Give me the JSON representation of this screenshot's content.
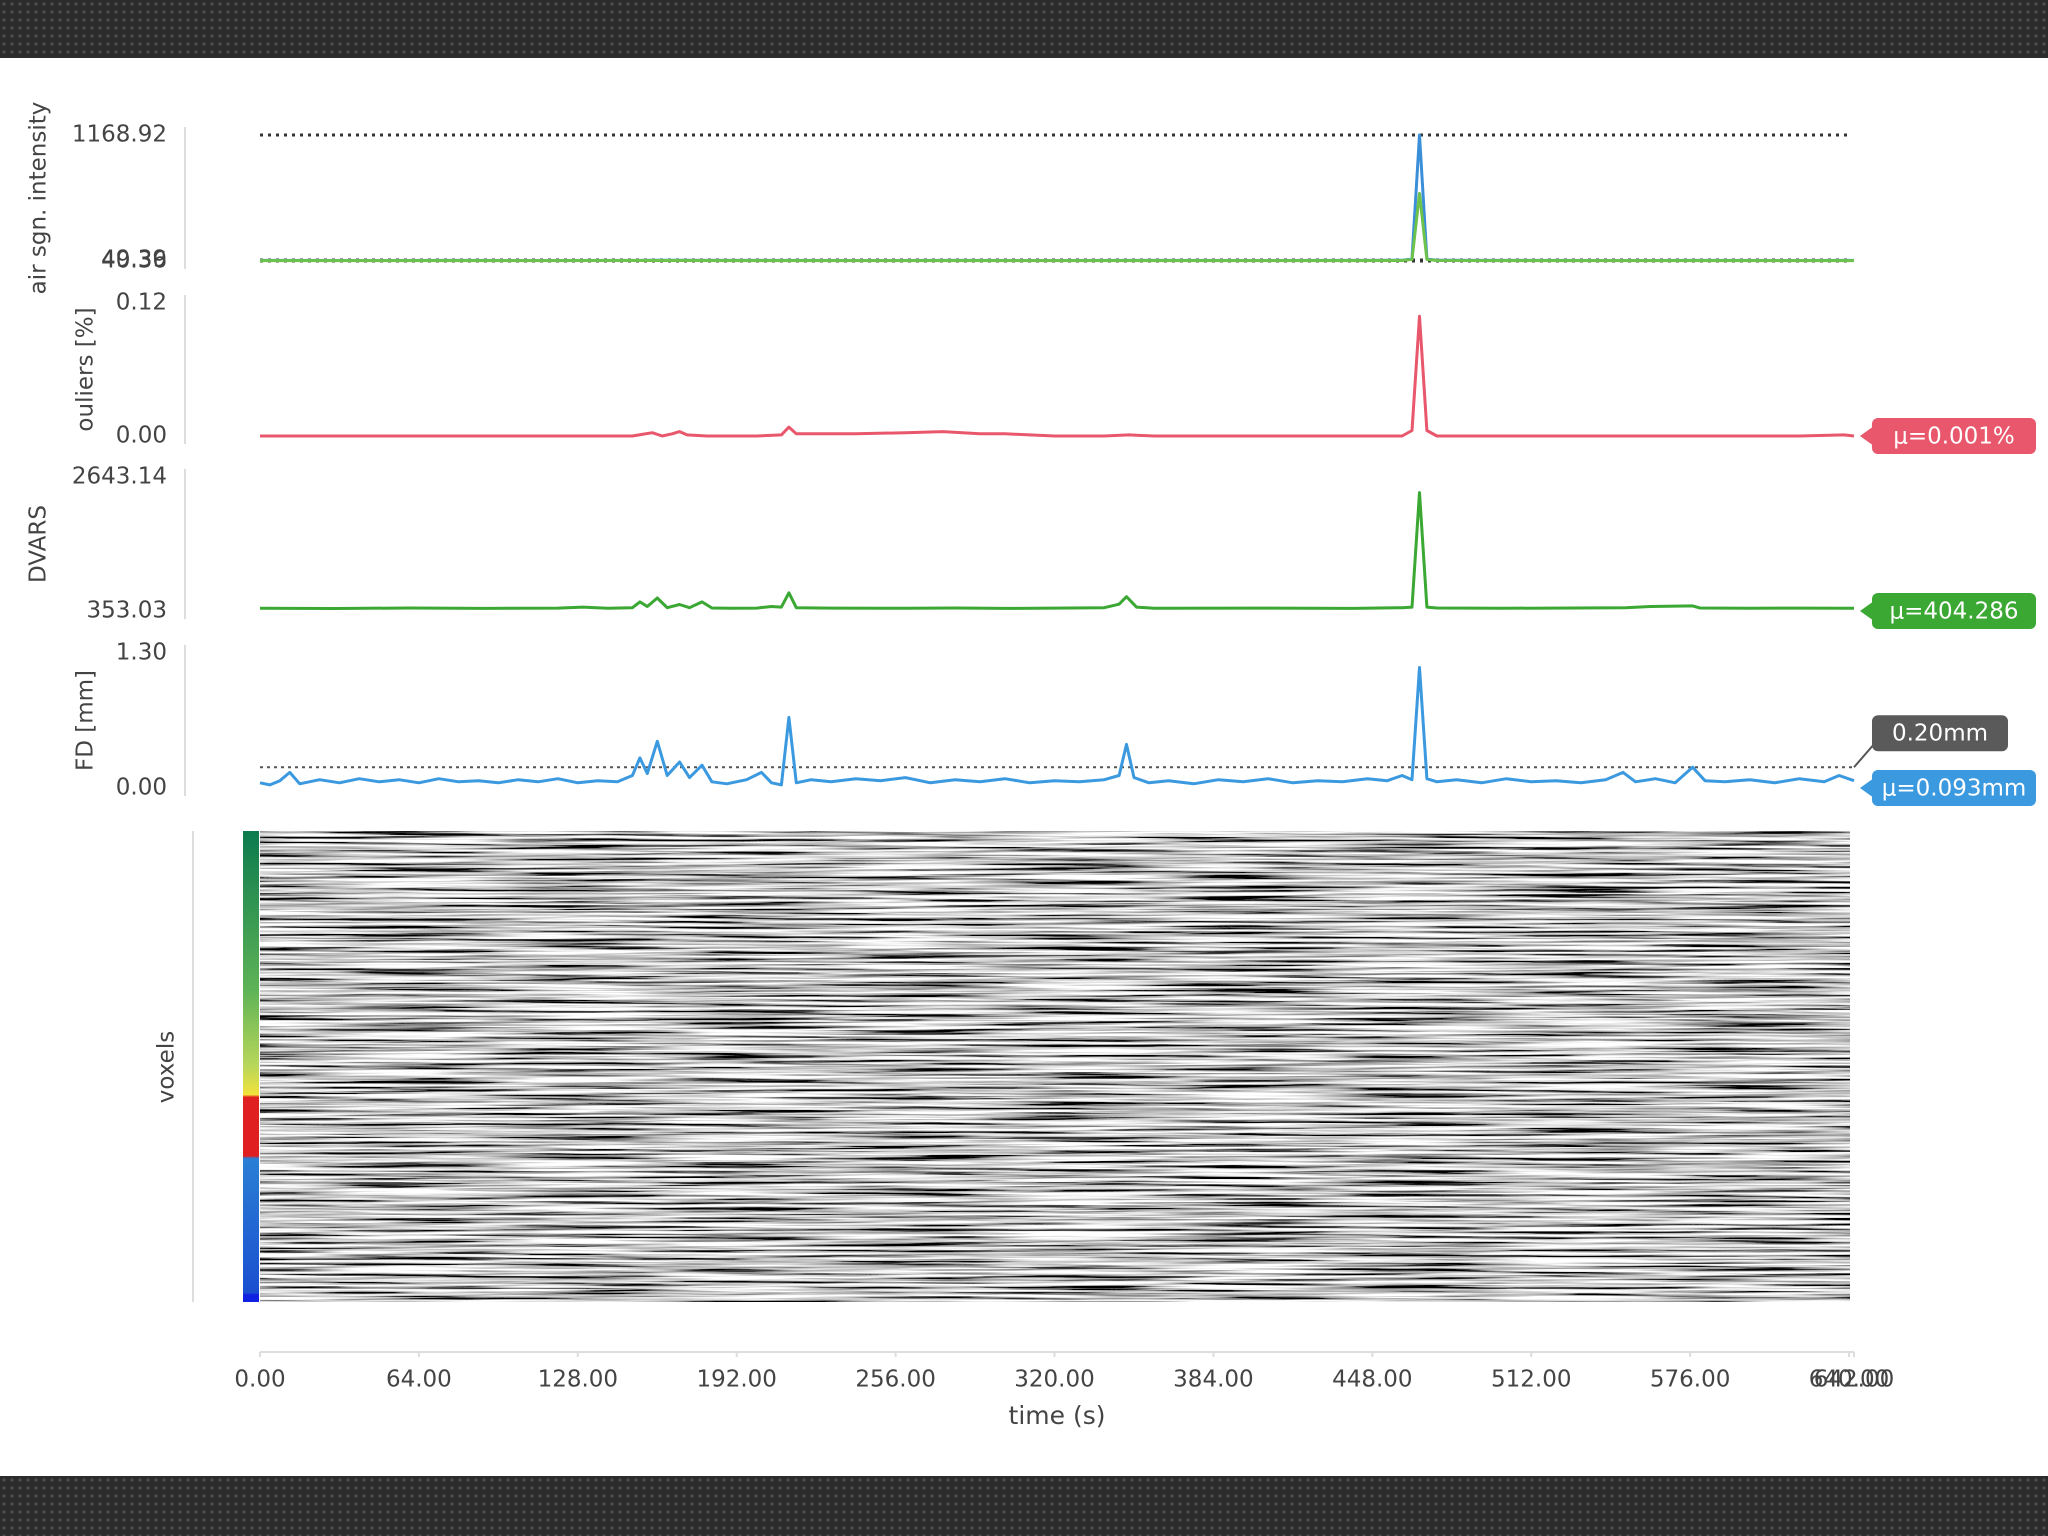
{
  "chart_data": [
    {
      "type": "line",
      "ylabel": "air sgn. intensity",
      "grid": "dotted",
      "ylim": [
        40.36,
        1168.92
      ],
      "yticks": [
        {
          "value": 40.36,
          "label": "40.36"
        },
        {
          "value": 49.39,
          "label": "49.39"
        },
        {
          "value": 1168.92,
          "label": "1168.92"
        }
      ],
      "x": [
        0,
        40,
        80,
        120,
        160,
        200,
        240,
        280,
        320,
        360,
        400,
        440,
        460,
        464,
        467,
        470,
        474,
        500,
        540,
        580,
        620,
        642
      ],
      "series": [
        {
          "color": "#3b8fd9",
          "values": [
            46,
            45,
            46,
            45,
            47,
            46,
            45,
            46,
            45,
            46,
            45,
            46,
            47,
            60,
            1168.92,
            60,
            47,
            46,
            45,
            46,
            45,
            46
          ]
        },
        {
          "color": "#6cc24a",
          "values": [
            44,
            44,
            44,
            44,
            45,
            44,
            44,
            44,
            44,
            44,
            44,
            44,
            45,
            55,
            645,
            55,
            45,
            44,
            44,
            44,
            44,
            44
          ]
        }
      ]
    },
    {
      "type": "line",
      "ylabel": "ouliers [%]",
      "mean_label": "μ=0.001%",
      "ylim": [
        0,
        0.12
      ],
      "yticks": [
        {
          "value": 0,
          "label": "0.00"
        },
        {
          "value": 0.12,
          "label": "0.12"
        }
      ],
      "x": [
        0,
        40,
        80,
        120,
        150,
        158,
        162,
        166,
        169,
        172,
        180,
        200,
        210,
        213,
        216,
        230,
        240,
        260,
        275,
        290,
        300,
        320,
        340,
        350,
        360,
        400,
        440,
        460,
        464,
        467,
        470,
        474,
        500,
        560,
        620,
        638,
        642
      ],
      "series": [
        {
          "color": "#e8576b",
          "values": [
            0,
            0,
            0,
            0,
            0,
            0.003,
            0,
            0.002,
            0.004,
            0.001,
            0,
            0,
            0.001,
            0.008,
            0.002,
            0.002,
            0.002,
            0.003,
            0.004,
            0.002,
            0.002,
            0,
            0,
            0.001,
            0,
            0,
            0,
            0,
            0.005,
            0.108,
            0.005,
            0,
            0,
            0,
            0,
            0.001,
            0
          ]
        }
      ]
    },
    {
      "type": "line",
      "ylabel": "DVARS",
      "mean_label": "μ=404.286",
      "ylim": [
        353.03,
        2643.14
      ],
      "yticks": [
        {
          "value": 353.03,
          "label": "353.03"
        },
        {
          "value": 2643.14,
          "label": "2643.14"
        }
      ],
      "x": [
        0,
        30,
        60,
        90,
        120,
        130,
        140,
        150,
        153,
        156,
        160,
        164,
        169,
        173,
        178,
        182,
        190,
        200,
        206,
        210,
        213,
        216,
        230,
        260,
        280,
        300,
        320,
        340,
        346,
        349,
        353,
        360,
        400,
        440,
        460,
        464,
        467,
        470,
        474,
        500,
        550,
        560,
        577,
        580,
        600,
        620,
        642
      ],
      "series": [
        {
          "color": "#3aa832",
          "values": [
            400,
            395,
            405,
            398,
            402,
            420,
            400,
            410,
            509,
            430,
            575,
            410,
            464,
            410,
            509,
            405,
            400,
            402,
            430,
            420,
            664,
            410,
            402,
            400,
            405,
            398,
            402,
            410,
            470,
            597,
            420,
            400,
            402,
            398,
            410,
            420,
            2376,
            420,
            405,
            400,
            410,
            430,
            440,
            405,
            400,
            402,
            400
          ]
        }
      ]
    },
    {
      "type": "line",
      "ylabel": "FD [mm]",
      "mean_label": "μ=0.093mm",
      "threshold": 0.2,
      "threshold_label": "0.20mm",
      "ylim": [
        0,
        1.3
      ],
      "yticks": [
        {
          "value": 0,
          "label": "0.00"
        },
        {
          "value": 1.3,
          "label": "1.30"
        }
      ],
      "x": [
        0,
        4,
        8,
        12,
        16,
        24,
        32,
        40,
        48,
        56,
        64,
        72,
        80,
        88,
        96,
        104,
        112,
        120,
        128,
        136,
        144,
        150,
        153,
        156,
        160,
        164,
        169,
        173,
        178,
        182,
        188,
        196,
        202,
        206,
        210,
        213,
        216,
        222,
        230,
        240,
        250,
        260,
        270,
        280,
        290,
        300,
        310,
        320,
        330,
        340,
        346,
        349,
        352,
        358,
        366,
        376,
        386,
        396,
        406,
        416,
        426,
        436,
        446,
        454,
        460,
        464,
        467,
        470,
        474,
        482,
        492,
        502,
        512,
        522,
        532,
        542,
        549,
        554,
        562,
        570,
        577,
        582,
        590,
        600,
        610,
        620,
        630,
        636,
        642
      ],
      "series": [
        {
          "color": "#3b99e0",
          "values": [
            0.05,
            0.03,
            0.07,
            0.15,
            0.04,
            0.08,
            0.05,
            0.09,
            0.06,
            0.08,
            0.05,
            0.09,
            0.06,
            0.07,
            0.05,
            0.08,
            0.06,
            0.09,
            0.05,
            0.07,
            0.06,
            0.12,
            0.29,
            0.14,
            0.45,
            0.12,
            0.25,
            0.1,
            0.22,
            0.06,
            0.04,
            0.08,
            0.15,
            0.05,
            0.03,
            0.68,
            0.05,
            0.08,
            0.06,
            0.09,
            0.07,
            0.1,
            0.05,
            0.08,
            0.06,
            0.09,
            0.05,
            0.07,
            0.06,
            0.08,
            0.12,
            0.42,
            0.1,
            0.05,
            0.07,
            0.04,
            0.08,
            0.06,
            0.09,
            0.05,
            0.07,
            0.06,
            0.09,
            0.07,
            0.12,
            0.08,
            1.16,
            0.09,
            0.06,
            0.08,
            0.05,
            0.09,
            0.06,
            0.07,
            0.05,
            0.08,
            0.15,
            0.06,
            0.09,
            0.05,
            0.2,
            0.07,
            0.06,
            0.08,
            0.05,
            0.09,
            0.06,
            0.12,
            0.07
          ]
        }
      ]
    },
    {
      "type": "carpet",
      "ylabel": "voxels",
      "xlabel": "time (s)",
      "xlim": [
        0,
        642
      ],
      "xticks": [
        {
          "value": 0,
          "label": "0.00"
        },
        {
          "value": 64,
          "label": "64.00"
        },
        {
          "value": 128,
          "label": "128.00"
        },
        {
          "value": 192,
          "label": "192.00"
        },
        {
          "value": 256,
          "label": "256.00"
        },
        {
          "value": 320,
          "label": "320.00"
        },
        {
          "value": 384,
          "label": "384.00"
        },
        {
          "value": 448,
          "label": "448.00"
        },
        {
          "value": 512,
          "label": "512.00"
        },
        {
          "value": 576,
          "label": "576.00"
        },
        {
          "value": 640,
          "label": "640.00"
        },
        {
          "value": 642,
          "label": "642.00"
        }
      ]
    }
  ]
}
